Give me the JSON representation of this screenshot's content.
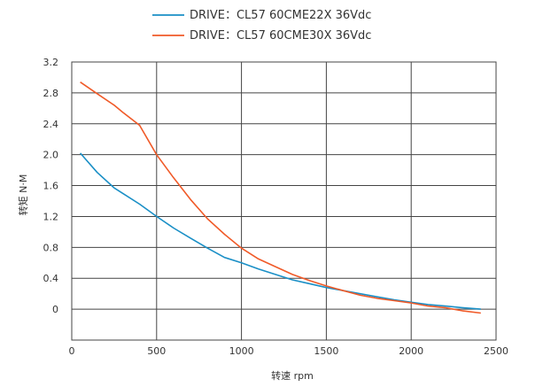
{
  "chart_data": {
    "type": "line",
    "title": "",
    "xlabel": "转速 rpm",
    "ylabel": "转矩 N·M",
    "xlim": [
      0,
      2500
    ],
    "ylim": [
      -0.4,
      3.2
    ],
    "xticks": [
      0,
      500,
      1000,
      1500,
      2000,
      2500
    ],
    "xtick_labels": [
      "0",
      "500",
      "1000",
      "1500",
      "2000",
      "2500"
    ],
    "yticks": [
      3.2,
      2.8,
      2.4,
      2.0,
      1.6,
      1.2,
      0.8,
      0.4,
      0
    ],
    "ytick_labels": [
      "3.2",
      "2.8",
      "2.4",
      "2.0",
      "1.6",
      "1.2",
      "0.8",
      "0.4",
      "0"
    ],
    "grid": true,
    "legend_position": "top-center",
    "series": [
      {
        "name": "DRIVE：CL57 60CME22X    36Vdc",
        "color": "#1a8fc6",
        "points": [
          [
            50,
            2.02
          ],
          [
            150,
            1.77
          ],
          [
            250,
            1.57
          ],
          [
            300,
            1.5
          ],
          [
            400,
            1.36
          ],
          [
            500,
            1.2
          ],
          [
            600,
            1.05
          ],
          [
            700,
            0.92
          ],
          [
            800,
            0.79
          ],
          [
            900,
            0.67
          ],
          [
            1000,
            0.6
          ],
          [
            1100,
            0.52
          ],
          [
            1200,
            0.45
          ],
          [
            1300,
            0.38
          ],
          [
            1400,
            0.33
          ],
          [
            1500,
            0.28
          ],
          [
            1600,
            0.24
          ],
          [
            1700,
            0.2
          ],
          [
            1800,
            0.16
          ],
          [
            1900,
            0.12
          ],
          [
            2000,
            0.09
          ],
          [
            2100,
            0.06
          ],
          [
            2200,
            0.04
          ],
          [
            2300,
            0.02
          ],
          [
            2410,
            0.0
          ]
        ]
      },
      {
        "name": "DRIVE：CL57 60CME30X    36Vdc",
        "color": "#f05a28",
        "points": [
          [
            50,
            2.94
          ],
          [
            150,
            2.79
          ],
          [
            250,
            2.64
          ],
          [
            300,
            2.55
          ],
          [
            400,
            2.38
          ],
          [
            500,
            2.0
          ],
          [
            600,
            1.7
          ],
          [
            700,
            1.42
          ],
          [
            800,
            1.17
          ],
          [
            900,
            0.97
          ],
          [
            1000,
            0.79
          ],
          [
            1100,
            0.65
          ],
          [
            1200,
            0.55
          ],
          [
            1300,
            0.45
          ],
          [
            1400,
            0.37
          ],
          [
            1500,
            0.3
          ],
          [
            1600,
            0.24
          ],
          [
            1700,
            0.18
          ],
          [
            1800,
            0.14
          ],
          [
            1900,
            0.11
          ],
          [
            2000,
            0.08
          ],
          [
            2100,
            0.04
          ],
          [
            2200,
            0.02
          ],
          [
            2300,
            -0.02
          ],
          [
            2410,
            -0.05
          ]
        ]
      }
    ]
  }
}
